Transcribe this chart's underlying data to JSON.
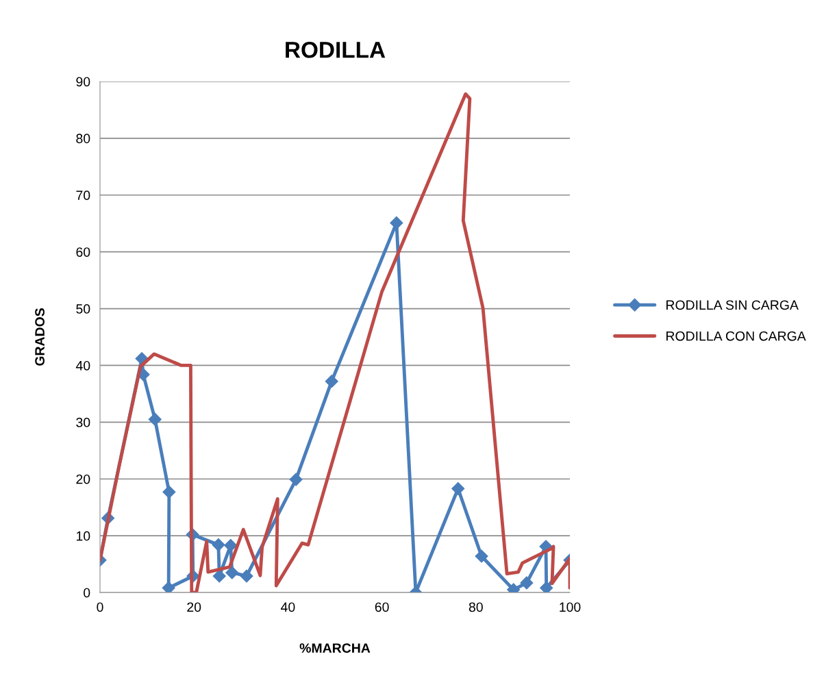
{
  "chart_data": {
    "type": "line",
    "title": "RODILLA",
    "xlabel": "%MARCHA",
    "ylabel": "GRADOS",
    "xlim": [
      0,
      100
    ],
    "xticks": [
      0,
      20,
      40,
      60,
      80,
      100
    ],
    "ylim": [
      0,
      90
    ],
    "yticks": [
      0,
      10,
      20,
      30,
      40,
      50,
      60,
      70,
      80,
      90
    ],
    "grid": "y",
    "legend": "right",
    "series": [
      {
        "name": "RODILLA SIN CARGA",
        "color": "#4a7ebb",
        "marker": "diamond",
        "x": [
          0,
          1.7,
          8.9,
          9.2,
          11.7,
          14.7,
          14.6,
          19.8,
          19.7,
          25.2,
          25.4,
          27.8,
          28.1,
          31.2,
          41.7,
          49.3,
          63.1,
          67.2,
          76.2,
          81.2,
          88.0,
          90.8,
          94.9,
          95.0,
          100
        ],
        "values": [
          5.7,
          13.1,
          41.2,
          38.4,
          30.5,
          17.7,
          0.8,
          2.9,
          10.2,
          8.4,
          2.9,
          8.3,
          3.5,
          2.9,
          19.9,
          37.2,
          65.1,
          0,
          18.3,
          6.4,
          0.5,
          1.7,
          8.1,
          0.8,
          5.7
        ]
      },
      {
        "name": "RODILLA CON CARGA",
        "color": "#be4b48",
        "marker": "none",
        "x": [
          0,
          4,
          8.6,
          11.5,
          17.3,
          19.3,
          19.5,
          20.5,
          22.7,
          23,
          27.6,
          30.5,
          34.1,
          34.5,
          37.8,
          37.5,
          43,
          44.3,
          60,
          77.8,
          78.7,
          77.3,
          81.5,
          86.6,
          89,
          89.9,
          96.2,
          96.5,
          96.2,
          100,
          100
        ],
        "values": [
          5.7,
          22,
          39.8,
          42,
          40,
          40,
          0,
          0,
          9,
          3.6,
          4.5,
          11.1,
          3,
          8,
          16.5,
          1.2,
          8.7,
          8.4,
          53,
          87.8,
          87,
          65.5,
          50.1,
          3.3,
          3.6,
          5.2,
          7.8,
          8.1,
          1.6,
          6,
          0.8
        ]
      }
    ]
  }
}
